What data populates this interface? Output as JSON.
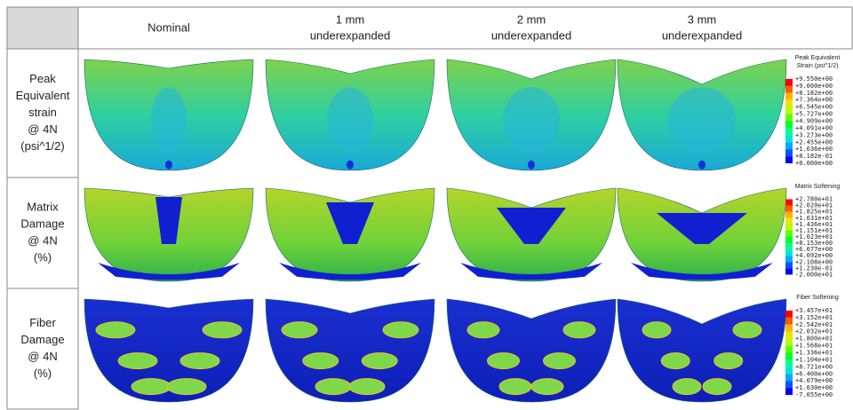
{
  "columns": [
    {
      "lines": [
        "Nominal"
      ]
    },
    {
      "lines": [
        "1 mm",
        "underexpanded"
      ]
    },
    {
      "lines": [
        "2 mm",
        "underexpanded"
      ]
    },
    {
      "lines": [
        "3 mm",
        "underexpanded"
      ]
    }
  ],
  "rows": [
    {
      "lines": [
        "Peak",
        "Equivalent",
        "strain",
        "@ 4N",
        "(psi^1/2)"
      ],
      "legend": {
        "title": [
          "Peak Equivalent",
          "Strain (psi^1/2)"
        ],
        "labels": [
          "+9.550e+00",
          "+9.000e+00",
          "+8.182e+00",
          "+7.364e+00",
          "+6.545e+00",
          "+5.727e+00",
          "+4.909e+00",
          "+4.091e+00",
          "+3.273e+00",
          "+2.455e+00",
          "+1.636e+00",
          "+8.182e-01",
          "+0.000e+00"
        ]
      }
    },
    {
      "lines": [
        "Matrix",
        "Damage",
        "@ 4N",
        "(%)"
      ],
      "legend": {
        "title": [
          "Matrix Softening"
        ],
        "labels": [
          "+2.780e+01",
          "+2.020e+01",
          "+1.825e+01",
          "+1.631e+01",
          "+1.436e+01",
          "+1.151e+01",
          "+1.023e+01",
          "+8.153e+00",
          "+6.077e+00",
          "+4.092e+00",
          "+2.108e+00",
          "+1.230e-01",
          "-2.000e+01"
        ]
      }
    },
    {
      "lines": [
        "Fiber",
        "Damage",
        "@ 4N",
        "(%)"
      ],
      "legend": {
        "title": [
          "Fiber Softening"
        ],
        "labels": [
          "+3.457e+01",
          "+3.152e+01",
          "+2.542e+01",
          "+2.032e+01",
          "+1.800e+01",
          "+1.568e+01",
          "+1.336e+01",
          "+1.104e+01",
          "+8.721e+00",
          "+6.400e+00",
          "+4.079e+00",
          "+1.030e+00",
          "-7.055e+00"
        ]
      }
    }
  ]
}
